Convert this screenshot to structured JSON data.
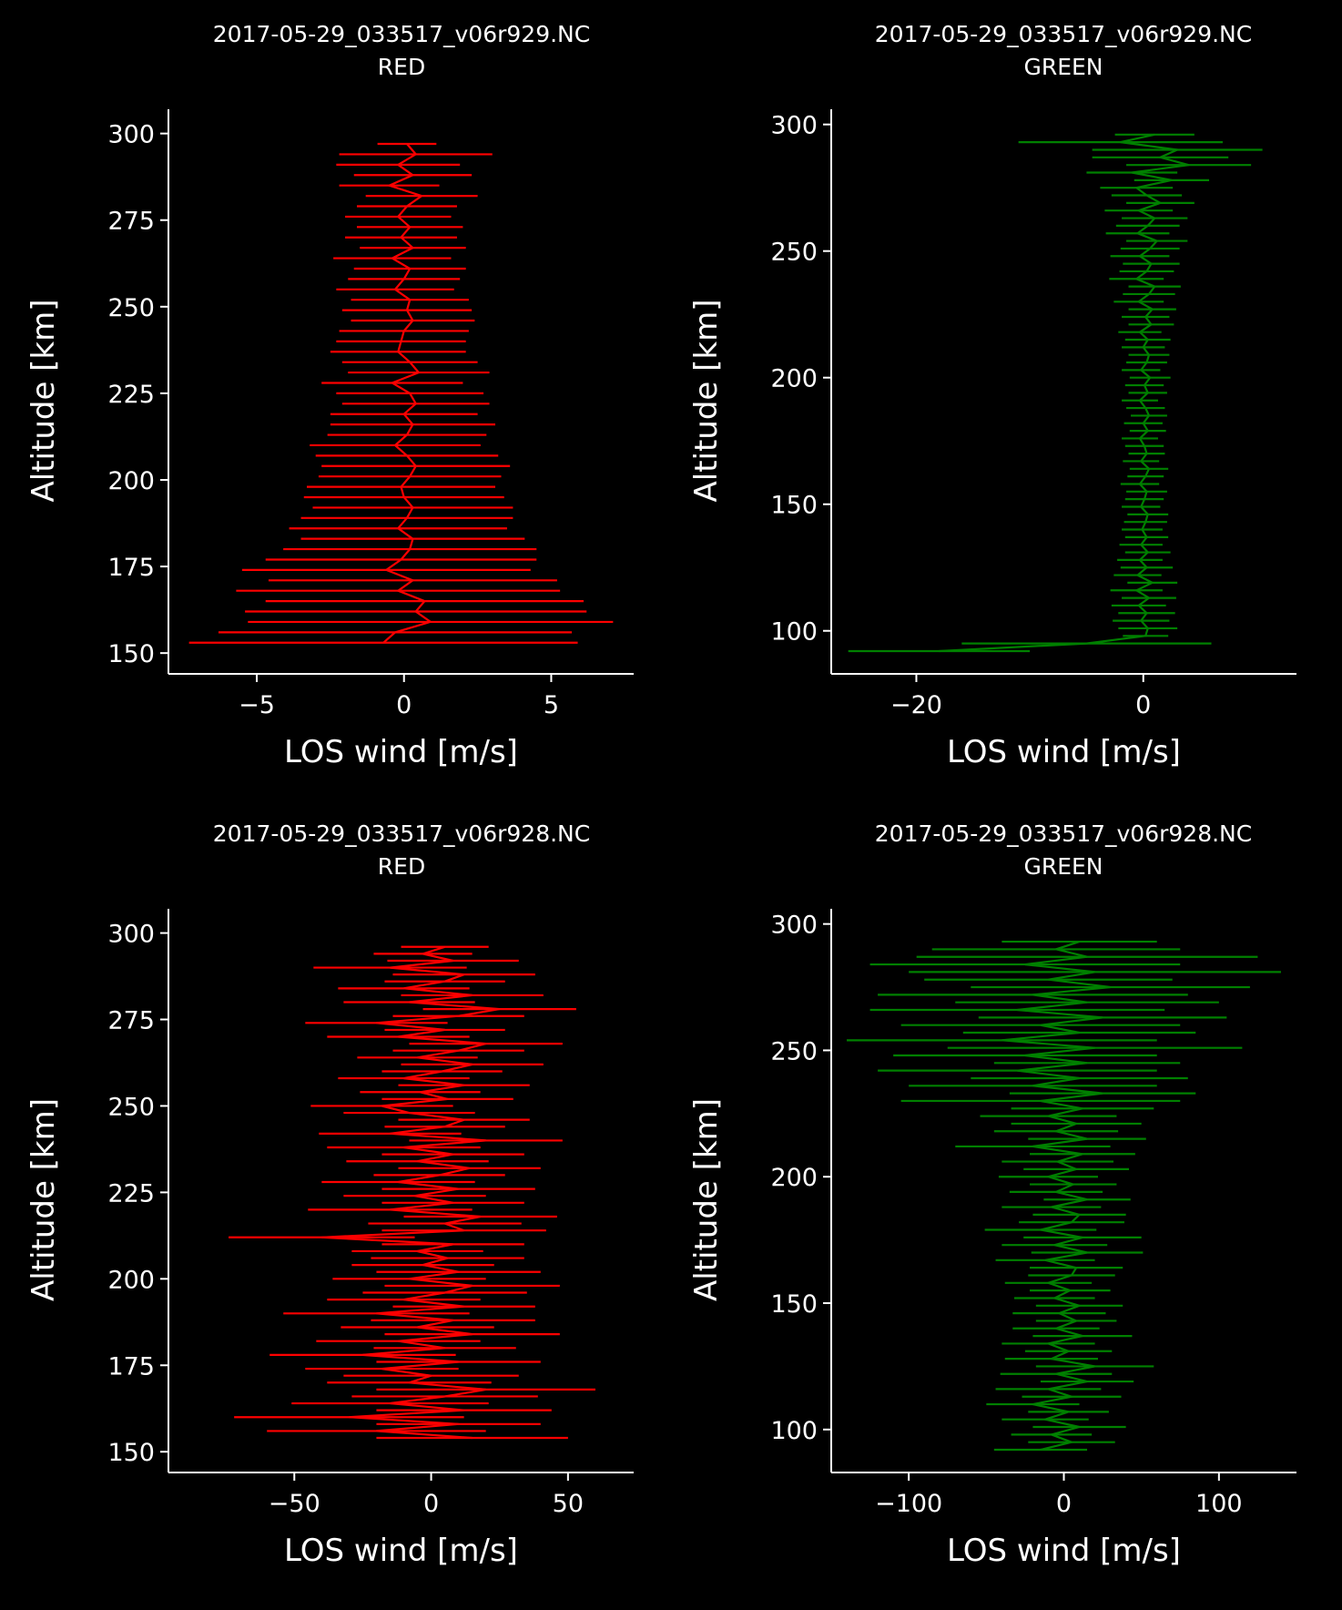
{
  "figure": {
    "background": "#000000",
    "foreground": "#ffffff"
  },
  "chart_data": [
    {
      "type": "line",
      "title": "2017-05-29_033517_v06r929.NC",
      "subtitle": "RED",
      "xlabel": "LOS wind [m/s]",
      "ylabel": "Altitude [km]",
      "xlim": [
        -8,
        7.8
      ],
      "ylim": [
        144,
        307
      ],
      "xticks": [
        -5,
        0,
        5
      ],
      "xtick_labels": [
        "−5",
        "0",
        "5"
      ],
      "yticks": [
        150,
        175,
        200,
        225,
        250,
        275,
        300
      ],
      "ytick_labels": [
        "150",
        "175",
        "200",
        "225",
        "250",
        "275",
        "300"
      ],
      "grid": false,
      "color": "#ff0000",
      "series": [
        {
          "altitude": [
            153,
            156,
            159,
            162,
            165,
            168,
            171,
            174,
            177,
            180,
            183,
            186,
            189,
            192,
            195,
            198,
            201,
            204,
            207,
            210,
            213,
            216,
            219,
            222,
            225,
            228,
            231,
            234,
            237,
            240,
            243,
            246,
            249,
            252,
            255,
            258,
            261,
            264,
            267,
            270,
            273,
            276,
            279,
            282,
            285,
            288,
            291,
            294,
            297
          ],
          "wind": [
            -0.7,
            -0.3,
            0.9,
            0.4,
            0.7,
            -0.2,
            0.3,
            -0.6,
            -0.1,
            0.2,
            0.3,
            -0.2,
            0.1,
            0.3,
            0.0,
            -0.1,
            0.2,
            0.4,
            0.1,
            -0.3,
            0.1,
            0.3,
            0.0,
            0.4,
            0.2,
            -0.4,
            0.5,
            0.2,
            -0.2,
            -0.1,
            0.0,
            0.3,
            0.1,
            0.2,
            -0.3,
            0.0,
            0.2,
            -0.4,
            0.3,
            -0.1,
            0.2,
            -0.2,
            0.1,
            0.6,
            -0.5,
            0.3,
            -0.2,
            0.4,
            0.1
          ],
          "error": [
            6.6,
            6.0,
            6.2,
            5.8,
            5.4,
            5.5,
            4.9,
            4.9,
            4.6,
            4.3,
            3.8,
            3.7,
            3.6,
            3.4,
            3.4,
            3.2,
            3.1,
            3.2,
            3.1,
            2.9,
            2.7,
            2.8,
            2.5,
            2.5,
            2.5,
            2.4,
            2.4,
            2.3,
            2.3,
            2.2,
            2.2,
            2.1,
            2.2,
            2.0,
            2.0,
            1.9,
            1.9,
            2.0,
            1.8,
            1.9,
            1.8,
            1.8,
            1.7,
            1.9,
            1.7,
            2.0,
            2.1,
            2.6,
            1.0
          ]
        }
      ]
    },
    {
      "type": "line",
      "title": "2017-05-29_033517_v06r929.NC",
      "subtitle": "GREEN",
      "xlabel": "LOS wind [m/s]",
      "ylabel": "Altitude [km]",
      "xlim": [
        -27.5,
        13.5
      ],
      "ylim": [
        83,
        306
      ],
      "xticks": [
        -20,
        0
      ],
      "xtick_labels": [
        "−20",
        "0"
      ],
      "yticks": [
        100,
        150,
        200,
        250,
        300
      ],
      "ytick_labels": [
        "100",
        "150",
        "200",
        "250",
        "300"
      ],
      "grid": false,
      "color": "#008000",
      "series": [
        {
          "altitude": [
            92,
            95,
            98,
            101,
            104,
            107,
            110,
            113,
            116,
            119,
            122,
            125,
            128,
            131,
            134,
            137,
            140,
            143,
            146,
            149,
            152,
            155,
            158,
            161,
            164,
            167,
            170,
            173,
            176,
            179,
            182,
            185,
            188,
            191,
            194,
            197,
            200,
            203,
            206,
            209,
            212,
            215,
            218,
            221,
            224,
            227,
            230,
            233,
            236,
            239,
            242,
            245,
            248,
            251,
            254,
            257,
            260,
            263,
            266,
            269,
            272,
            275,
            278,
            281,
            284,
            287,
            290,
            293,
            296
          ],
          "wind": [
            -18.0,
            -5.0,
            0.2,
            0.4,
            -0.2,
            0.3,
            -0.4,
            0.5,
            -0.6,
            0.8,
            -0.5,
            0.3,
            -0.3,
            0.4,
            -0.2,
            0.3,
            -0.1,
            0.2,
            0.4,
            -0.2,
            0.1,
            0.3,
            -0.3,
            0.2,
            0.5,
            -0.2,
            0.3,
            0.1,
            -0.3,
            0.4,
            0.0,
            0.5,
            0.2,
            -0.3,
            0.4,
            0.1,
            0.6,
            -0.2,
            0.3,
            0.5,
            0.0,
            0.4,
            -0.3,
            0.7,
            0.2,
            0.8,
            -0.4,
            0.5,
            1.0,
            -0.6,
            0.3,
            0.7,
            -0.3,
            0.6,
            1.2,
            -0.5,
            0.4,
            1.0,
            -0.4,
            1.5,
            0.3,
            -0.6,
            2.5,
            -1.0,
            4.0,
            1.5,
            3.0,
            -2.0,
            1.0
          ],
          "error": [
            8.0,
            11.0,
            2.0,
            2.6,
            2.5,
            2.5,
            2.4,
            2.4,
            2.3,
            2.2,
            2.1,
            2.3,
            2.0,
            2.0,
            1.9,
            1.9,
            1.8,
            1.9,
            1.8,
            1.7,
            1.7,
            1.8,
            1.7,
            1.6,
            1.7,
            1.6,
            1.6,
            1.7,
            1.6,
            1.6,
            1.7,
            1.6,
            1.7,
            1.6,
            1.7,
            1.7,
            1.8,
            1.7,
            1.8,
            1.8,
            1.9,
            2.0,
            1.9,
            2.0,
            2.1,
            2.1,
            2.2,
            2.3,
            2.3,
            2.4,
            2.4,
            2.5,
            2.6,
            2.6,
            2.7,
            2.8,
            2.8,
            2.9,
            3.0,
            3.0,
            3.1,
            3.2,
            3.3,
            4.0,
            5.5,
            6.0,
            7.5,
            9.0,
            3.5
          ]
        }
      ]
    },
    {
      "type": "line",
      "title": "2017-05-29_033517_v06r928.NC",
      "subtitle": "RED",
      "xlabel": "LOS wind [m/s]",
      "ylabel": "Altitude [km]",
      "xlim": [
        -96,
        74
      ],
      "ylim": [
        144,
        307
      ],
      "xticks": [
        -50,
        0,
        50
      ],
      "xtick_labels": [
        "−50",
        "0",
        "50"
      ],
      "yticks": [
        150,
        175,
        200,
        225,
        250,
        275,
        300
      ],
      "ytick_labels": [
        "150",
        "175",
        "200",
        "225",
        "250",
        "275",
        "300"
      ],
      "grid": false,
      "color": "#ff0000",
      "series": [
        {
          "altitude": [
            154,
            156,
            158,
            160,
            162,
            164,
            166,
            168,
            170,
            172,
            174,
            176,
            178,
            180,
            182,
            184,
            186,
            188,
            190,
            192,
            194,
            196,
            198,
            200,
            202,
            204,
            206,
            208,
            210,
            212,
            214,
            216,
            218,
            220,
            222,
            224,
            226,
            228,
            230,
            232,
            234,
            236,
            238,
            240,
            242,
            244,
            246,
            248,
            250,
            252,
            254,
            256,
            258,
            260,
            262,
            264,
            266,
            268,
            270,
            272,
            274,
            276,
            278,
            280,
            282,
            284,
            286,
            288,
            290,
            292,
            294,
            296
          ],
          "wind": [
            15,
            -20,
            10,
            -30,
            12,
            -15,
            5,
            20,
            -8,
            0,
            -18,
            10,
            -25,
            5,
            -12,
            15,
            -5,
            8,
            -20,
            12,
            -10,
            5,
            15,
            -8,
            10,
            -3,
            6,
            -5,
            8,
            -40,
            12,
            5,
            18,
            -15,
            8,
            -6,
            10,
            -12,
            3,
            14,
            -5,
            8,
            -10,
            20,
            -15,
            5,
            12,
            -8,
            -18,
            6,
            -4,
            12,
            -10,
            4,
            15,
            -5,
            10,
            20,
            -12,
            5,
            -20,
            10,
            25,
            -8,
            15,
            -10,
            5,
            12,
            -15,
            8,
            -3,
            5
          ],
          "error": [
            35,
            40,
            30,
            42,
            32,
            36,
            34,
            40,
            30,
            32,
            28,
            30,
            34,
            26,
            30,
            32,
            28,
            30,
            34,
            26,
            28,
            30,
            32,
            28,
            30,
            26,
            28,
            24,
            26,
            34,
            30,
            28,
            28,
            30,
            26,
            26,
            28,
            28,
            24,
            26,
            26,
            26,
            28,
            28,
            26,
            22,
            24,
            24,
            26,
            24,
            22,
            24,
            24,
            22,
            26,
            22,
            24,
            28,
            26,
            22,
            26,
            24,
            28,
            24,
            26,
            24,
            22,
            26,
            28,
            24,
            18,
            16
          ]
        }
      ]
    },
    {
      "type": "line",
      "title": "2017-05-29_033517_v06r928.NC",
      "subtitle": "GREEN",
      "xlabel": "LOS wind [m/s]",
      "ylabel": "Altitude [km]",
      "xlim": [
        -150,
        150
      ],
      "ylim": [
        83,
        306
      ],
      "xticks": [
        -100,
        0,
        100
      ],
      "xtick_labels": [
        "−100",
        "0",
        "100"
      ],
      "yticks": [
        100,
        150,
        200,
        250,
        300
      ],
      "ytick_labels": [
        "100",
        "150",
        "200",
        "250",
        "300"
      ],
      "grid": false,
      "color": "#008000",
      "series": [
        {
          "altitude": [
            92,
            95,
            98,
            101,
            104,
            107,
            110,
            113,
            116,
            119,
            122,
            125,
            128,
            131,
            134,
            137,
            140,
            143,
            146,
            149,
            152,
            155,
            158,
            161,
            164,
            167,
            170,
            173,
            176,
            179,
            182,
            185,
            188,
            191,
            194,
            197,
            200,
            203,
            206,
            209,
            212,
            215,
            218,
            221,
            224,
            227,
            230,
            233,
            236,
            239,
            242,
            245,
            248,
            251,
            254,
            257,
            260,
            263,
            266,
            269,
            272,
            275,
            278,
            281,
            284,
            287,
            290,
            293
          ],
          "wind": [
            -15,
            5,
            -8,
            10,
            -12,
            3,
            -20,
            5,
            -10,
            15,
            -5,
            20,
            -8,
            3,
            -10,
            12,
            -5,
            8,
            -3,
            10,
            -6,
            4,
            -10,
            5,
            8,
            -12,
            15,
            -6,
            12,
            -15,
            5,
            10,
            -8,
            15,
            -5,
            6,
            -10,
            8,
            -4,
            12,
            -20,
            15,
            -5,
            8,
            -10,
            12,
            -15,
            25,
            -20,
            10,
            -30,
            15,
            -25,
            20,
            -40,
            10,
            -15,
            25,
            -30,
            15,
            -20,
            30,
            -10,
            20,
            -25,
            15,
            -5,
            10
          ],
          "error": [
            30,
            28,
            26,
            30,
            28,
            26,
            30,
            32,
            34,
            30,
            36,
            38,
            30,
            28,
            30,
            32,
            28,
            26,
            30,
            28,
            26,
            26,
            28,
            28,
            30,
            32,
            36,
            34,
            38,
            36,
            34,
            30,
            32,
            28,
            30,
            28,
            32,
            34,
            36,
            34,
            50,
            38,
            40,
            42,
            44,
            46,
            90,
            60,
            80,
            70,
            90,
            60,
            85,
            95,
            100,
            75,
            90,
            80,
            95,
            85,
            100,
            90,
            80,
            120,
            100,
            110,
            80,
            50
          ]
        }
      ]
    }
  ]
}
